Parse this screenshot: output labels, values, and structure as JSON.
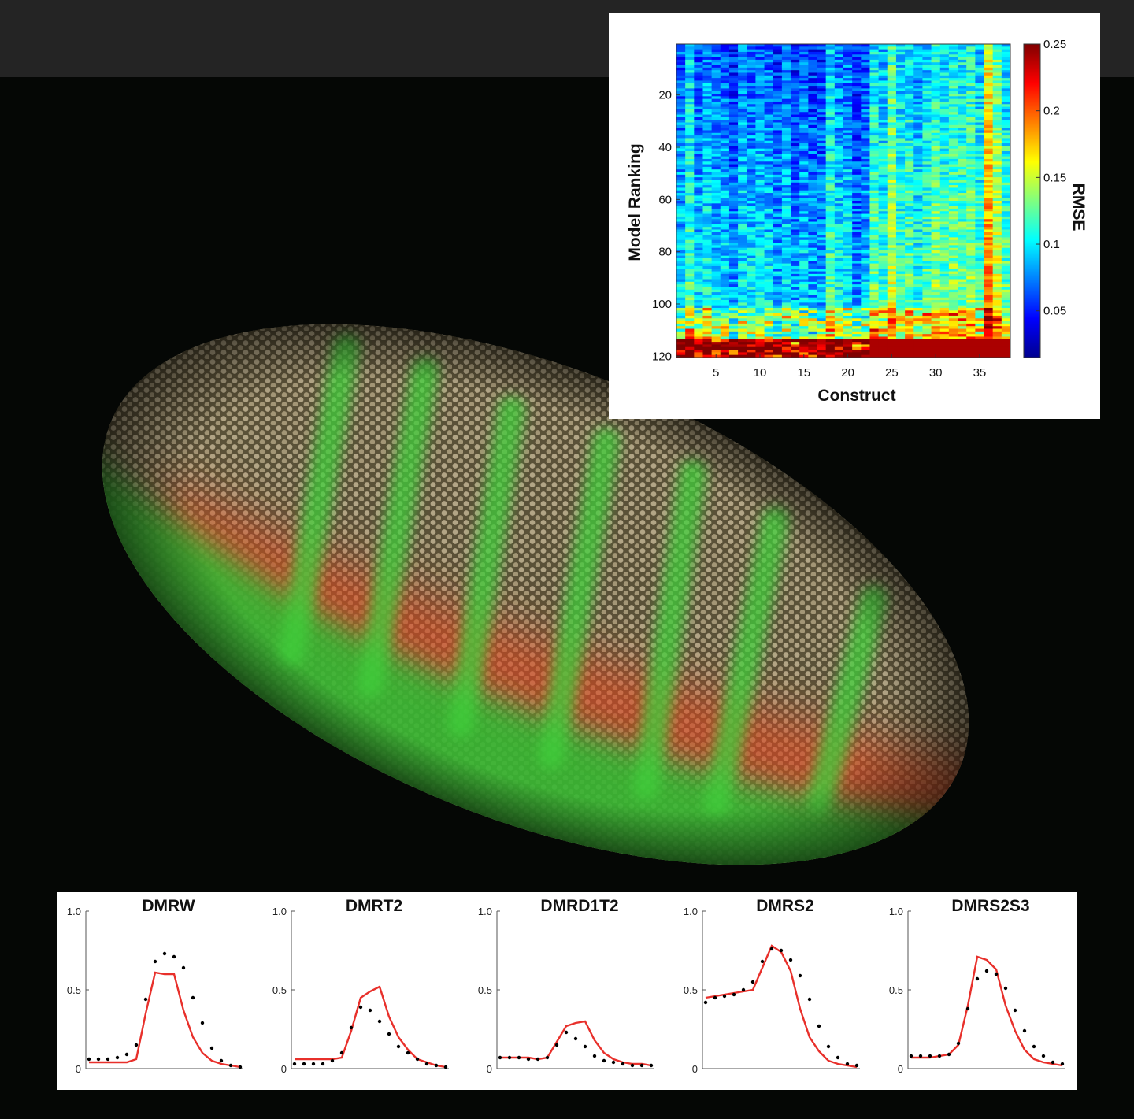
{
  "heatmap": {
    "type": "heatmap",
    "xlabel": "Construct",
    "ylabel": "Model Ranking",
    "colorbar_label": "RMSE",
    "x_ticks": [
      5,
      10,
      15,
      20,
      25,
      30,
      35
    ],
    "y_ticks": [
      20,
      40,
      60,
      80,
      100,
      120
    ],
    "colorbar_ticks": [
      "0.05",
      "0.1",
      "0.15",
      "0.2",
      "0.25"
    ],
    "x_range": [
      1,
      38
    ],
    "y_range": [
      1,
      120
    ],
    "colorbar_range": [
      0.015,
      0.25
    ],
    "colormap": "jet"
  },
  "chart_data": [
    {
      "type": "line",
      "title": "DMRW",
      "y_ticks": [
        "0",
        "0.5",
        "1.0"
      ],
      "ylim": [
        0,
        1.0
      ],
      "x": [
        1,
        2,
        3,
        4,
        5,
        6,
        7,
        8,
        9,
        10,
        11,
        12,
        13,
        14,
        15,
        16,
        17
      ],
      "series": [
        {
          "style": "line",
          "color": "#e8302b",
          "values": [
            0.04,
            0.04,
            0.04,
            0.04,
            0.04,
            0.06,
            0.35,
            0.61,
            0.6,
            0.6,
            0.37,
            0.2,
            0.1,
            0.05,
            0.03,
            0.02,
            0.01
          ]
        },
        {
          "style": "dots",
          "color": "#000000",
          "values": [
            0.06,
            0.06,
            0.06,
            0.07,
            0.09,
            0.15,
            0.44,
            0.68,
            0.73,
            0.71,
            0.64,
            0.45,
            0.29,
            0.13,
            0.05,
            0.02,
            0.01
          ]
        }
      ]
    },
    {
      "type": "line",
      "title": "DMRT2",
      "y_ticks": [
        "0",
        "0.5",
        "1.0"
      ],
      "ylim": [
        0,
        1.0
      ],
      "x": [
        1,
        2,
        3,
        4,
        5,
        6,
        7,
        8,
        9,
        10,
        11,
        12,
        13,
        14,
        15,
        16,
        17
      ],
      "series": [
        {
          "style": "line",
          "color": "#e8302b",
          "values": [
            0.06,
            0.06,
            0.06,
            0.06,
            0.06,
            0.07,
            0.24,
            0.45,
            0.49,
            0.52,
            0.33,
            0.2,
            0.12,
            0.06,
            0.04,
            0.02,
            0.01
          ]
        },
        {
          "style": "dots",
          "color": "#000000",
          "values": [
            0.03,
            0.03,
            0.03,
            0.03,
            0.05,
            0.1,
            0.26,
            0.39,
            0.37,
            0.3,
            0.22,
            0.14,
            0.1,
            0.06,
            0.03,
            0.02,
            0.01
          ]
        }
      ]
    },
    {
      "type": "line",
      "title": "DMRD1T2",
      "y_ticks": [
        "0",
        "0.5",
        "1.0"
      ],
      "ylim": [
        0,
        1.0
      ],
      "x": [
        1,
        2,
        3,
        4,
        5,
        6,
        7,
        8,
        9,
        10,
        11,
        12,
        13,
        14,
        15,
        16,
        17
      ],
      "series": [
        {
          "style": "line",
          "color": "#e8302b",
          "values": [
            0.07,
            0.07,
            0.07,
            0.07,
            0.06,
            0.07,
            0.17,
            0.27,
            0.29,
            0.3,
            0.18,
            0.1,
            0.06,
            0.04,
            0.03,
            0.03,
            0.02
          ]
        },
        {
          "style": "dots",
          "color": "#000000",
          "values": [
            0.07,
            0.07,
            0.07,
            0.06,
            0.06,
            0.07,
            0.15,
            0.23,
            0.19,
            0.14,
            0.08,
            0.05,
            0.04,
            0.03,
            0.02,
            0.02,
            0.02
          ]
        }
      ]
    },
    {
      "type": "line",
      "title": "DMRS2",
      "y_ticks": [
        "0",
        "0.5",
        "1.0"
      ],
      "ylim": [
        0,
        1.0
      ],
      "x": [
        1,
        2,
        3,
        4,
        5,
        6,
        7,
        8,
        9,
        10,
        11,
        12,
        13,
        14,
        15,
        16,
        17
      ],
      "series": [
        {
          "style": "line",
          "color": "#e8302b",
          "values": [
            0.45,
            0.46,
            0.47,
            0.48,
            0.49,
            0.5,
            0.64,
            0.78,
            0.74,
            0.62,
            0.38,
            0.2,
            0.11,
            0.05,
            0.03,
            0.02,
            0.01
          ]
        },
        {
          "style": "dots",
          "color": "#000000",
          "values": [
            0.42,
            0.45,
            0.46,
            0.47,
            0.5,
            0.55,
            0.68,
            0.76,
            0.75,
            0.69,
            0.59,
            0.44,
            0.27,
            0.14,
            0.07,
            0.03,
            0.02
          ]
        }
      ]
    },
    {
      "type": "line",
      "title": "DMRS2S3",
      "y_ticks": [
        "0",
        "0.5",
        "1.0"
      ],
      "ylim": [
        0,
        1.0
      ],
      "x": [
        1,
        2,
        3,
        4,
        5,
        6,
        7,
        8,
        9,
        10,
        11,
        12,
        13,
        14,
        15,
        16,
        17
      ],
      "series": [
        {
          "style": "line",
          "color": "#e8302b",
          "values": [
            0.07,
            0.07,
            0.07,
            0.08,
            0.09,
            0.15,
            0.4,
            0.71,
            0.69,
            0.63,
            0.4,
            0.24,
            0.12,
            0.06,
            0.04,
            0.03,
            0.02
          ]
        },
        {
          "style": "dots",
          "color": "#000000",
          "values": [
            0.08,
            0.08,
            0.08,
            0.08,
            0.09,
            0.16,
            0.38,
            0.57,
            0.62,
            0.6,
            0.51,
            0.37,
            0.24,
            0.14,
            0.08,
            0.04,
            0.03
          ]
        }
      ]
    }
  ],
  "colors": {
    "background": "#050705",
    "top_band": "#242424",
    "nuclei": "#a89a7c",
    "stripe_green": "#3fcf3a",
    "posterior_red": "#d84a24"
  }
}
